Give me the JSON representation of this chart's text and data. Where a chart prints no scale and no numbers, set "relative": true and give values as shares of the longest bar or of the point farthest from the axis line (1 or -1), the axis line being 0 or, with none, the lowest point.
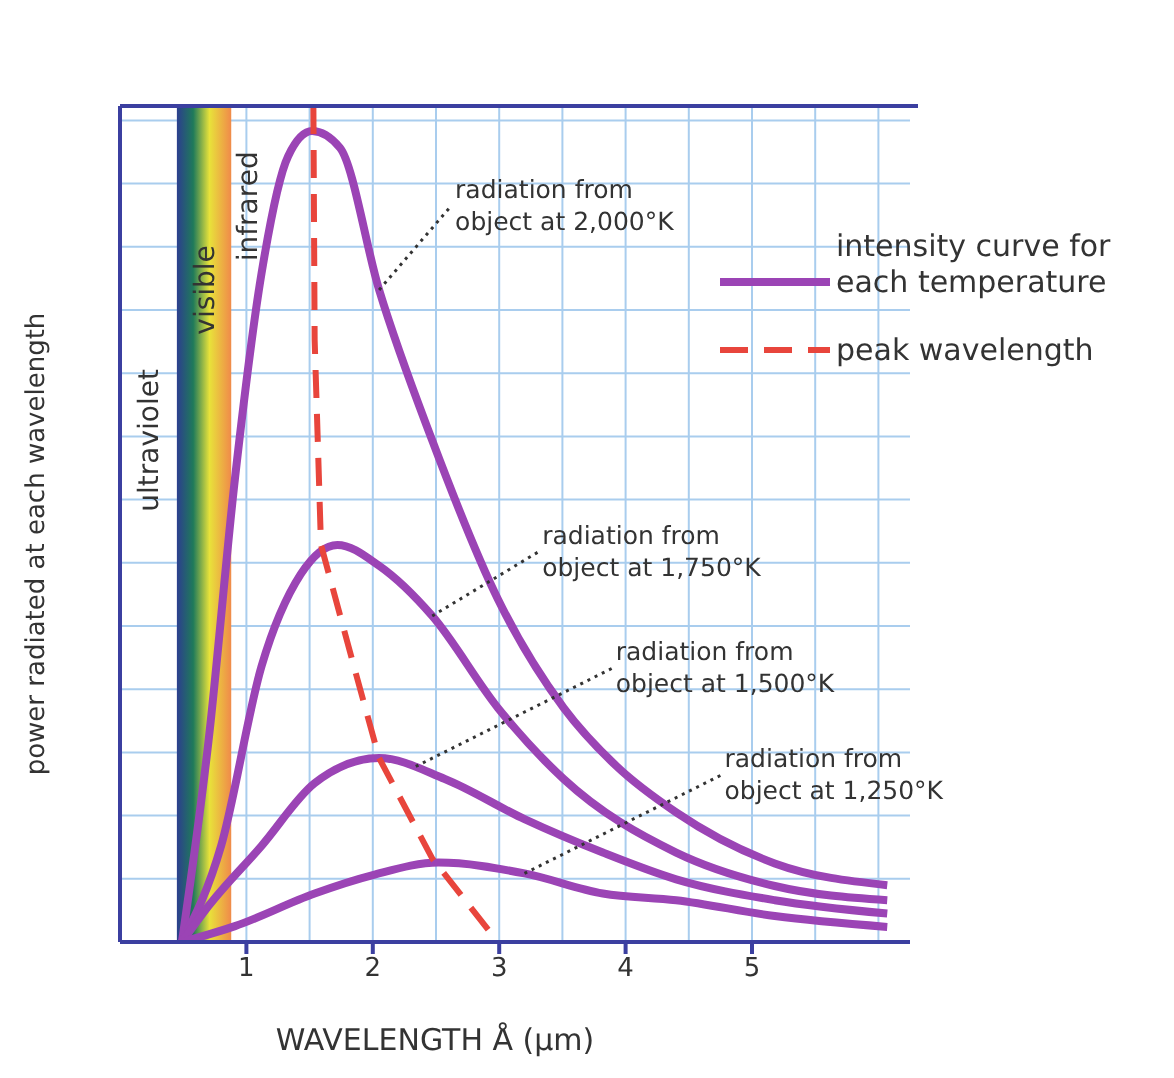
{
  "chart_data": {
    "type": "line",
    "relative": true,
    "xlabel": "WAVELENGTH Å (µm)",
    "ylabel": "power radiated at each wavelength",
    "xlim": [
      0,
      6.25
    ],
    "xticks": [
      1,
      2,
      3,
      4,
      5
    ],
    "grid": true,
    "legend": "top right",
    "marker": "none",
    "series": [
      {
        "name": "intensity curve for each temperature",
        "color": "#9b44b5",
        "x": [
          0.49,
          0.7,
          0.91,
          1.12,
          1.33,
          1.52,
          1.74,
          2.05,
          2.47,
          2.99,
          3.51,
          3.93,
          4.4,
          5.18,
          6.07
        ],
        "values": [
          0,
          0.24,
          0.555,
          0.8,
          0.94,
          0.97,
          0.95,
          0.78,
          0.6,
          0.41,
          0.28,
          0.21,
          0.155,
          0.094,
          0.068
        ]
      },
      {
        "color": "#9b44b5",
        "x": [
          0.49,
          0.8,
          1.12,
          1.43,
          1.72,
          2.05,
          2.47,
          2.99,
          3.51,
          4.4,
          5.18,
          6.07
        ],
        "values": [
          0,
          0.115,
          0.33,
          0.44,
          0.475,
          0.45,
          0.39,
          0.28,
          0.195,
          0.107,
          0.067,
          0.05
        ]
      },
      {
        "color": "#9b44b5",
        "x": [
          0.49,
          0.7,
          1.12,
          1.54,
          2.05,
          2.57,
          3.2,
          3.82,
          4.4,
          5.18,
          6.07
        ],
        "values": [
          0,
          0.043,
          0.115,
          0.19,
          0.22,
          0.195,
          0.147,
          0.107,
          0.075,
          0.05,
          0.034
        ]
      },
      {
        "color": "#9b44b5",
        "x": [
          0.49,
          0.91,
          1.54,
          2.0,
          2.52,
          3.2,
          3.82,
          4.4,
          5.18,
          6.07
        ],
        "values": [
          0,
          0.019,
          0.058,
          0.08,
          0.095,
          0.082,
          0.058,
          0.05,
          0.031,
          0.018
        ]
      },
      {
        "name": "peak wavelength",
        "color": "#e8453c",
        "line_style": "dashed",
        "x": [
          1.53,
          1.54,
          1.59,
          1.85,
          2.05,
          2.47,
          2.99
        ],
        "values": [
          1.0,
          0.72,
          0.475,
          0.33,
          0.22,
          0.1,
          0
        ]
      }
    ],
    "bands": [
      {
        "axis": "x",
        "from": 0.45,
        "to": 0.88,
        "label": "visible",
        "color": "#e8e23a"
      }
    ],
    "annotations": [
      "ultraviolet",
      "infrared",
      {
        "text": "radiation from\nobject at 2,000°K",
        "x": 2.05,
        "y": 0.78
      },
      {
        "text": "radiation from\nobject at 1,750°K",
        "x": 2.47,
        "y": 0.39
      },
      {
        "text": "radiation from\nobject at 1,500°K",
        "x": 2.34,
        "y": 0.21
      },
      {
        "text": "radiation from\nobject at 1,250°K",
        "x": 3.2,
        "y": 0.082
      }
    ]
  }
}
